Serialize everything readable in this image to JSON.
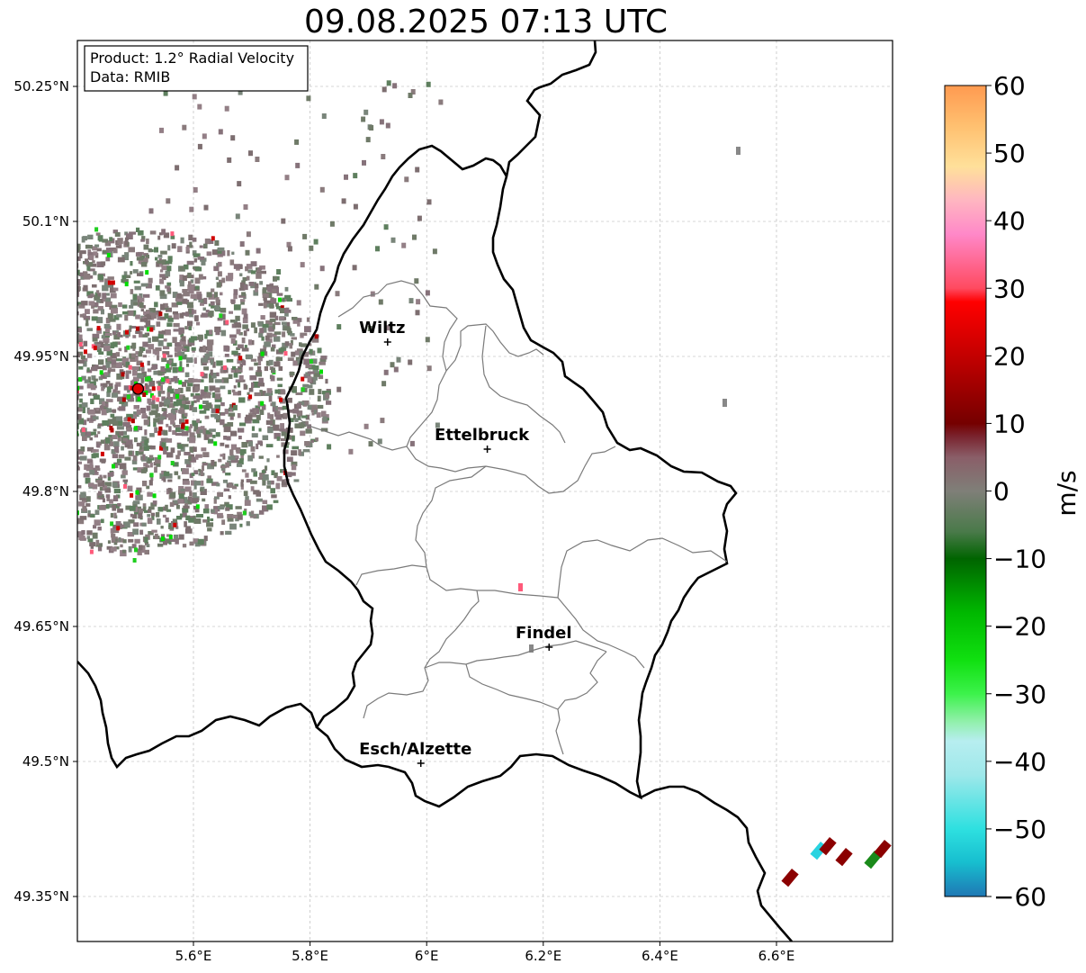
{
  "title": "09.08.2025 07:13 UTC",
  "info_box": {
    "line1": "Product: 1.2° Radial Velocity",
    "line2": "Data: RMIB"
  },
  "map": {
    "lon_range": [
      5.4,
      6.8
    ],
    "lat_range": [
      49.3,
      50.3
    ],
    "x_ticks": [
      {
        "value": 5.6,
        "label": "5.6°E"
      },
      {
        "value": 5.8,
        "label": "5.8°E"
      },
      {
        "value": 6.0,
        "label": "6°E"
      },
      {
        "value": 6.2,
        "label": "6.2°E"
      },
      {
        "value": 6.4,
        "label": "6.4°E"
      },
      {
        "value": 6.6,
        "label": "6.6°E"
      }
    ],
    "y_ticks": [
      {
        "value": 50.25,
        "label": "50.25°N"
      },
      {
        "value": 50.1,
        "label": "50.1°N"
      },
      {
        "value": 49.95,
        "label": "49.95°N"
      },
      {
        "value": 49.8,
        "label": "49.8°N"
      },
      {
        "value": 49.65,
        "label": "49.65°N"
      },
      {
        "value": 49.5,
        "label": "49.5°N"
      },
      {
        "value": 49.35,
        "label": "49.35°N"
      }
    ],
    "grid": true,
    "radar_site": {
      "lon": 5.505,
      "lat": 49.914
    },
    "cities": [
      {
        "name": "Wiltz",
        "lon": 5.933,
        "lat": 49.966
      },
      {
        "name": "Ettelbruck",
        "lon": 6.104,
        "lat": 49.847
      },
      {
        "name": "Findel",
        "lon": 6.21,
        "lat": 49.627
      },
      {
        "name": "Esch/Alzette",
        "lon": 5.99,
        "lat": 49.498
      }
    ]
  },
  "colorbar": {
    "unit": "m/s",
    "min": -60,
    "max": 60,
    "ticks": [
      {
        "value": 60,
        "label": "60"
      },
      {
        "value": 50,
        "label": "50"
      },
      {
        "value": 40,
        "label": "40"
      },
      {
        "value": 30,
        "label": "30"
      },
      {
        "value": 20,
        "label": "20"
      },
      {
        "value": 10,
        "label": "10"
      },
      {
        "value": 0,
        "label": "0"
      },
      {
        "value": -10,
        "label": "−10"
      },
      {
        "value": -20,
        "label": "−20"
      },
      {
        "value": -30,
        "label": "−30"
      },
      {
        "value": -40,
        "label": "−40"
      },
      {
        "value": -50,
        "label": "−50"
      },
      {
        "value": -60,
        "label": "−60"
      }
    ],
    "stops": [
      {
        "value": -60,
        "color": "#1f77b4"
      },
      {
        "value": -55,
        "color": "#17becf"
      },
      {
        "value": -50,
        "color": "#2ee0e0"
      },
      {
        "value": -42,
        "color": "#9ee8ea"
      },
      {
        "value": -37,
        "color": "#b7eef0"
      },
      {
        "value": -34,
        "color": "#8ff0a8"
      },
      {
        "value": -30,
        "color": "#3cf24b"
      },
      {
        "value": -25,
        "color": "#10e010"
      },
      {
        "value": -18,
        "color": "#00b800"
      },
      {
        "value": -10,
        "color": "#006400"
      },
      {
        "value": -6,
        "color": "#4a7a4a"
      },
      {
        "value": 0,
        "color": "#7f7f78"
      },
      {
        "value": 5,
        "color": "#8a5e68"
      },
      {
        "value": 8,
        "color": "#7a2530"
      },
      {
        "value": 10,
        "color": "#750000"
      },
      {
        "value": 18,
        "color": "#b40000"
      },
      {
        "value": 28,
        "color": "#ff0000"
      },
      {
        "value": 30,
        "color": "#ff4a60"
      },
      {
        "value": 38,
        "color": "#ff88c8"
      },
      {
        "value": 43,
        "color": "#ffb6c1"
      },
      {
        "value": 48,
        "color": "#ffe09a"
      },
      {
        "value": 54,
        "color": "#ffc070"
      },
      {
        "value": 60,
        "color": "#ff9a50"
      }
    ]
  }
}
